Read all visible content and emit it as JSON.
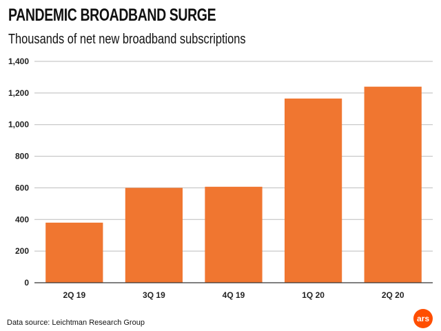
{
  "chart_data": {
    "type": "bar",
    "title": "PANDEMIC BROADBAND SURGE",
    "subtitle": "Thousands of net new broadband subscriptions",
    "categories": [
      "2Q 19",
      "3Q 19",
      "4Q 19",
      "1Q 20",
      "2Q 20"
    ],
    "values": [
      380,
      600,
      607,
      1165,
      1240
    ],
    "ylim": [
      0,
      1400
    ],
    "yticks": [
      0,
      200,
      400,
      600,
      800,
      1000,
      1200,
      1400
    ],
    "ytick_labels": [
      "0",
      "200",
      "400",
      "600",
      "800",
      "1,000",
      "1,200",
      "1,400"
    ],
    "grid": true,
    "bar_color": "#f07630"
  },
  "source": "Data source:  Leichtman Research Group",
  "logo_text": "ars",
  "colors": {
    "logo": "#ff4e00",
    "grid": "#bbbbbb",
    "axis": "#333333"
  }
}
